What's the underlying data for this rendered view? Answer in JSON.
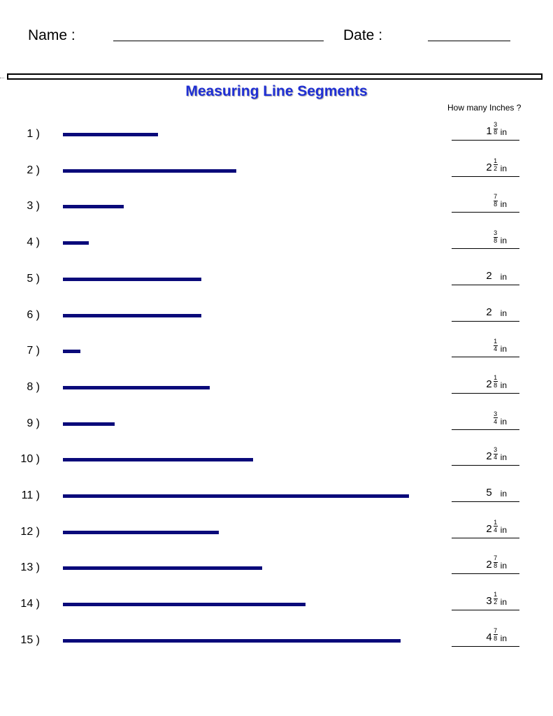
{
  "header": {
    "name_label": "Name :",
    "date_label": "Date :"
  },
  "title": "Measuring Line Segments",
  "answer_column_heading": "How many Inches ?",
  "colors": {
    "title": "#1f2fd4",
    "segment": "#0a0a7a"
  },
  "problems": [
    {
      "label": "1 )",
      "length_in": 1.375,
      "answer": {
        "whole": "1",
        "num": "3",
        "den": "8",
        "unit": "in"
      }
    },
    {
      "label": "2 )",
      "length_in": 2.5,
      "answer": {
        "whole": "2",
        "num": "1",
        "den": "2",
        "unit": "in"
      }
    },
    {
      "label": "3 )",
      "length_in": 0.875,
      "answer": {
        "whole": "",
        "num": "7",
        "den": "8",
        "unit": "in"
      }
    },
    {
      "label": "4 )",
      "length_in": 0.375,
      "answer": {
        "whole": "",
        "num": "3",
        "den": "8",
        "unit": "in"
      }
    },
    {
      "label": "5 )",
      "length_in": 2,
      "answer": {
        "whole": "2",
        "num": "",
        "den": "",
        "unit": "in"
      }
    },
    {
      "label": "6 )",
      "length_in": 2,
      "answer": {
        "whole": "2",
        "num": "",
        "den": "",
        "unit": "in"
      }
    },
    {
      "label": "7 )",
      "length_in": 0.25,
      "answer": {
        "whole": "",
        "num": "1",
        "den": "4",
        "unit": "in"
      }
    },
    {
      "label": "8 )",
      "length_in": 2.125,
      "answer": {
        "whole": "2",
        "num": "1",
        "den": "8",
        "unit": "in"
      }
    },
    {
      "label": "9 )",
      "length_in": 0.75,
      "answer": {
        "whole": "",
        "num": "3",
        "den": "4",
        "unit": "in"
      }
    },
    {
      "label": "10 )",
      "length_in": 2.75,
      "answer": {
        "whole": "2",
        "num": "3",
        "den": "4",
        "unit": "in"
      }
    },
    {
      "label": "11 )",
      "length_in": 5,
      "answer": {
        "whole": "5",
        "num": "",
        "den": "",
        "unit": "in"
      }
    },
    {
      "label": "12 )",
      "length_in": 2.25,
      "answer": {
        "whole": "2",
        "num": "1",
        "den": "4",
        "unit": "in"
      }
    },
    {
      "label": "13 )",
      "length_in": 2.875,
      "answer": {
        "whole": "2",
        "num": "7",
        "den": "8",
        "unit": "in"
      }
    },
    {
      "label": "14 )",
      "length_in": 3.5,
      "answer": {
        "whole": "3",
        "num": "1",
        "den": "2",
        "unit": "in"
      }
    },
    {
      "label": "15 )",
      "length_in": 4.875,
      "answer": {
        "whole": "4",
        "num": "7",
        "den": "8",
        "unit": "in"
      }
    }
  ]
}
